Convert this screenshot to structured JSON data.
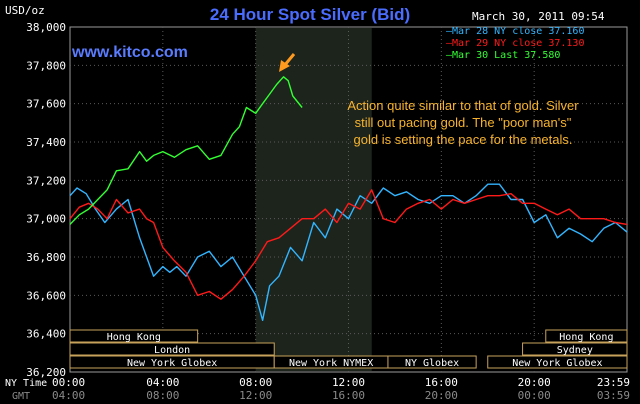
{
  "chart_data": {
    "type": "line",
    "title": "24 Hour Spot Silver (Bid)",
    "ylabel": "USD/oz",
    "timestamp": "March 30, 2011 09:54",
    "watermark": "www.kitco.com",
    "annotation": [
      "Action quite similar to that of gold. Silver",
      "still out pacing gold. The \"poor man's\"",
      "gold is setting the pace for the metals."
    ],
    "ylim": [
      36200,
      38000
    ],
    "xlim": [
      0,
      24
    ],
    "y_ticks": [
      "38,000",
      "37,800",
      "37,600",
      "37,400",
      "37,200",
      "37,000",
      "36,800",
      "36,600",
      "36,400",
      "36,200"
    ],
    "x_ticks_ny": [
      "00:00",
      "04:00",
      "08:00",
      "12:00",
      "16:00",
      "20:00",
      "23:59"
    ],
    "x_ticks_gmt": [
      "04:00",
      "08:00",
      "12:00",
      "16:00",
      "20:00",
      "00:00",
      "03:59"
    ],
    "x_axis_names": [
      "NY Time",
      "GMT"
    ],
    "legend": [
      {
        "label": "Mar 28 NY close 37.160",
        "color": "#33b5ff"
      },
      {
        "label": "Mar 29 NY close 37.130",
        "color": "#ff1a1a"
      },
      {
        "label": "Mar 30 Last 37.580",
        "color": "#33ff33"
      }
    ],
    "highlight_region": [
      8,
      13
    ],
    "markets": [
      {
        "name": "Hong Kong",
        "start": 0,
        "end": 5.5,
        "row": 1
      },
      {
        "name": "London",
        "start": 0,
        "end": 8.8,
        "row": 2
      },
      {
        "name": "New York Globex",
        "start": 0,
        "end": 8.8,
        "row": 3
      },
      {
        "name": "New York NYMEX",
        "start": 8.8,
        "end": 13.7,
        "row": 3
      },
      {
        "name": "NY Globex",
        "start": 13.7,
        "end": 17.5,
        "row": 3
      },
      {
        "name": "Hong Kong",
        "start": 20.5,
        "end": 24,
        "row": 1
      },
      {
        "name": "Sydney",
        "start": 19.5,
        "end": 24,
        "row": 2
      },
      {
        "name": "New York Globex",
        "start": 18,
        "end": 24,
        "row": 3
      }
    ],
    "series": [
      {
        "name": "Mar 28 NY close 37.160",
        "color": "#33b5ff",
        "x": [
          0,
          0.3,
          0.7,
          1.1,
          1.5,
          2.0,
          2.5,
          3.0,
          3.3,
          3.6,
          4.0,
          4.3,
          4.6,
          5.0,
          5.5,
          6.0,
          6.5,
          7.0,
          7.5,
          8.0,
          8.3,
          8.6,
          9.0,
          9.5,
          10.0,
          10.5,
          11.0,
          11.5,
          12.0,
          12.5,
          13.0,
          13.5,
          14.0,
          14.5,
          15.0,
          15.5,
          16.0,
          16.5,
          17.0,
          17.5,
          18.0,
          18.5,
          19.0,
          19.5,
          20.0,
          20.5,
          21.0,
          21.5,
          22.0,
          22.5,
          23.0,
          23.5,
          24.0
        ],
        "y": [
          37120,
          37160,
          37130,
          37050,
          36980,
          37050,
          37100,
          36900,
          36800,
          36700,
          36750,
          36720,
          36750,
          36700,
          36800,
          36830,
          36750,
          36800,
          36700,
          36600,
          36470,
          36650,
          36700,
          36850,
          36780,
          36980,
          36900,
          37050,
          37000,
          37120,
          37080,
          37160,
          37120,
          37140,
          37100,
          37080,
          37120,
          37120,
          37080,
          37120,
          37180,
          37180,
          37100,
          37100,
          36980,
          37020,
          36900,
          36950,
          36920,
          36880,
          36950,
          36980,
          36930
        ]
      },
      {
        "name": "Mar 29 NY close 37.130",
        "color": "#ff1a1a",
        "x": [
          0,
          0.4,
          0.8,
          1.2,
          1.6,
          2.0,
          2.5,
          3.0,
          3.3,
          3.6,
          4.0,
          4.5,
          5.0,
          5.5,
          6.0,
          6.5,
          7.0,
          7.5,
          8.0,
          8.5,
          9.0,
          9.5,
          10.0,
          10.5,
          11.0,
          11.5,
          12.0,
          12.5,
          13.0,
          13.5,
          14.0,
          14.5,
          15.0,
          15.5,
          16.0,
          16.5,
          17.0,
          17.5,
          18.0,
          18.5,
          19.0,
          19.5,
          20.0,
          20.5,
          21.0,
          21.5,
          22.0,
          22.5,
          23.0,
          23.5,
          24.0
        ],
        "y": [
          37000,
          37060,
          37080,
          37050,
          37000,
          37100,
          37030,
          37050,
          37000,
          36980,
          36850,
          36780,
          36720,
          36600,
          36620,
          36580,
          36630,
          36700,
          36780,
          36880,
          36900,
          36950,
          37000,
          37000,
          37050,
          36980,
          37080,
          37050,
          37150,
          37000,
          36980,
          37050,
          37080,
          37100,
          37050,
          37100,
          37080,
          37100,
          37120,
          37120,
          37130,
          37080,
          37080,
          37050,
          37020,
          37050,
          37000,
          37000,
          37000,
          36980,
          36970
        ]
      },
      {
        "name": "Mar 30 Last 37.580",
        "color": "#33ff33",
        "x": [
          0,
          0.4,
          0.8,
          1.2,
          1.6,
          2.0,
          2.5,
          3.0,
          3.3,
          3.6,
          4.0,
          4.5,
          5.0,
          5.5,
          6.0,
          6.5,
          7.0,
          7.3,
          7.6,
          8.0,
          8.3,
          8.6,
          8.9,
          9.2,
          9.4,
          9.6,
          10.0
        ],
        "y": [
          36970,
          37020,
          37050,
          37100,
          37150,
          37250,
          37260,
          37350,
          37300,
          37330,
          37350,
          37320,
          37360,
          37380,
          37310,
          37330,
          37440,
          37480,
          37580,
          37550,
          37600,
          37650,
          37700,
          37740,
          37720,
          37640,
          37580
        ]
      }
    ]
  }
}
